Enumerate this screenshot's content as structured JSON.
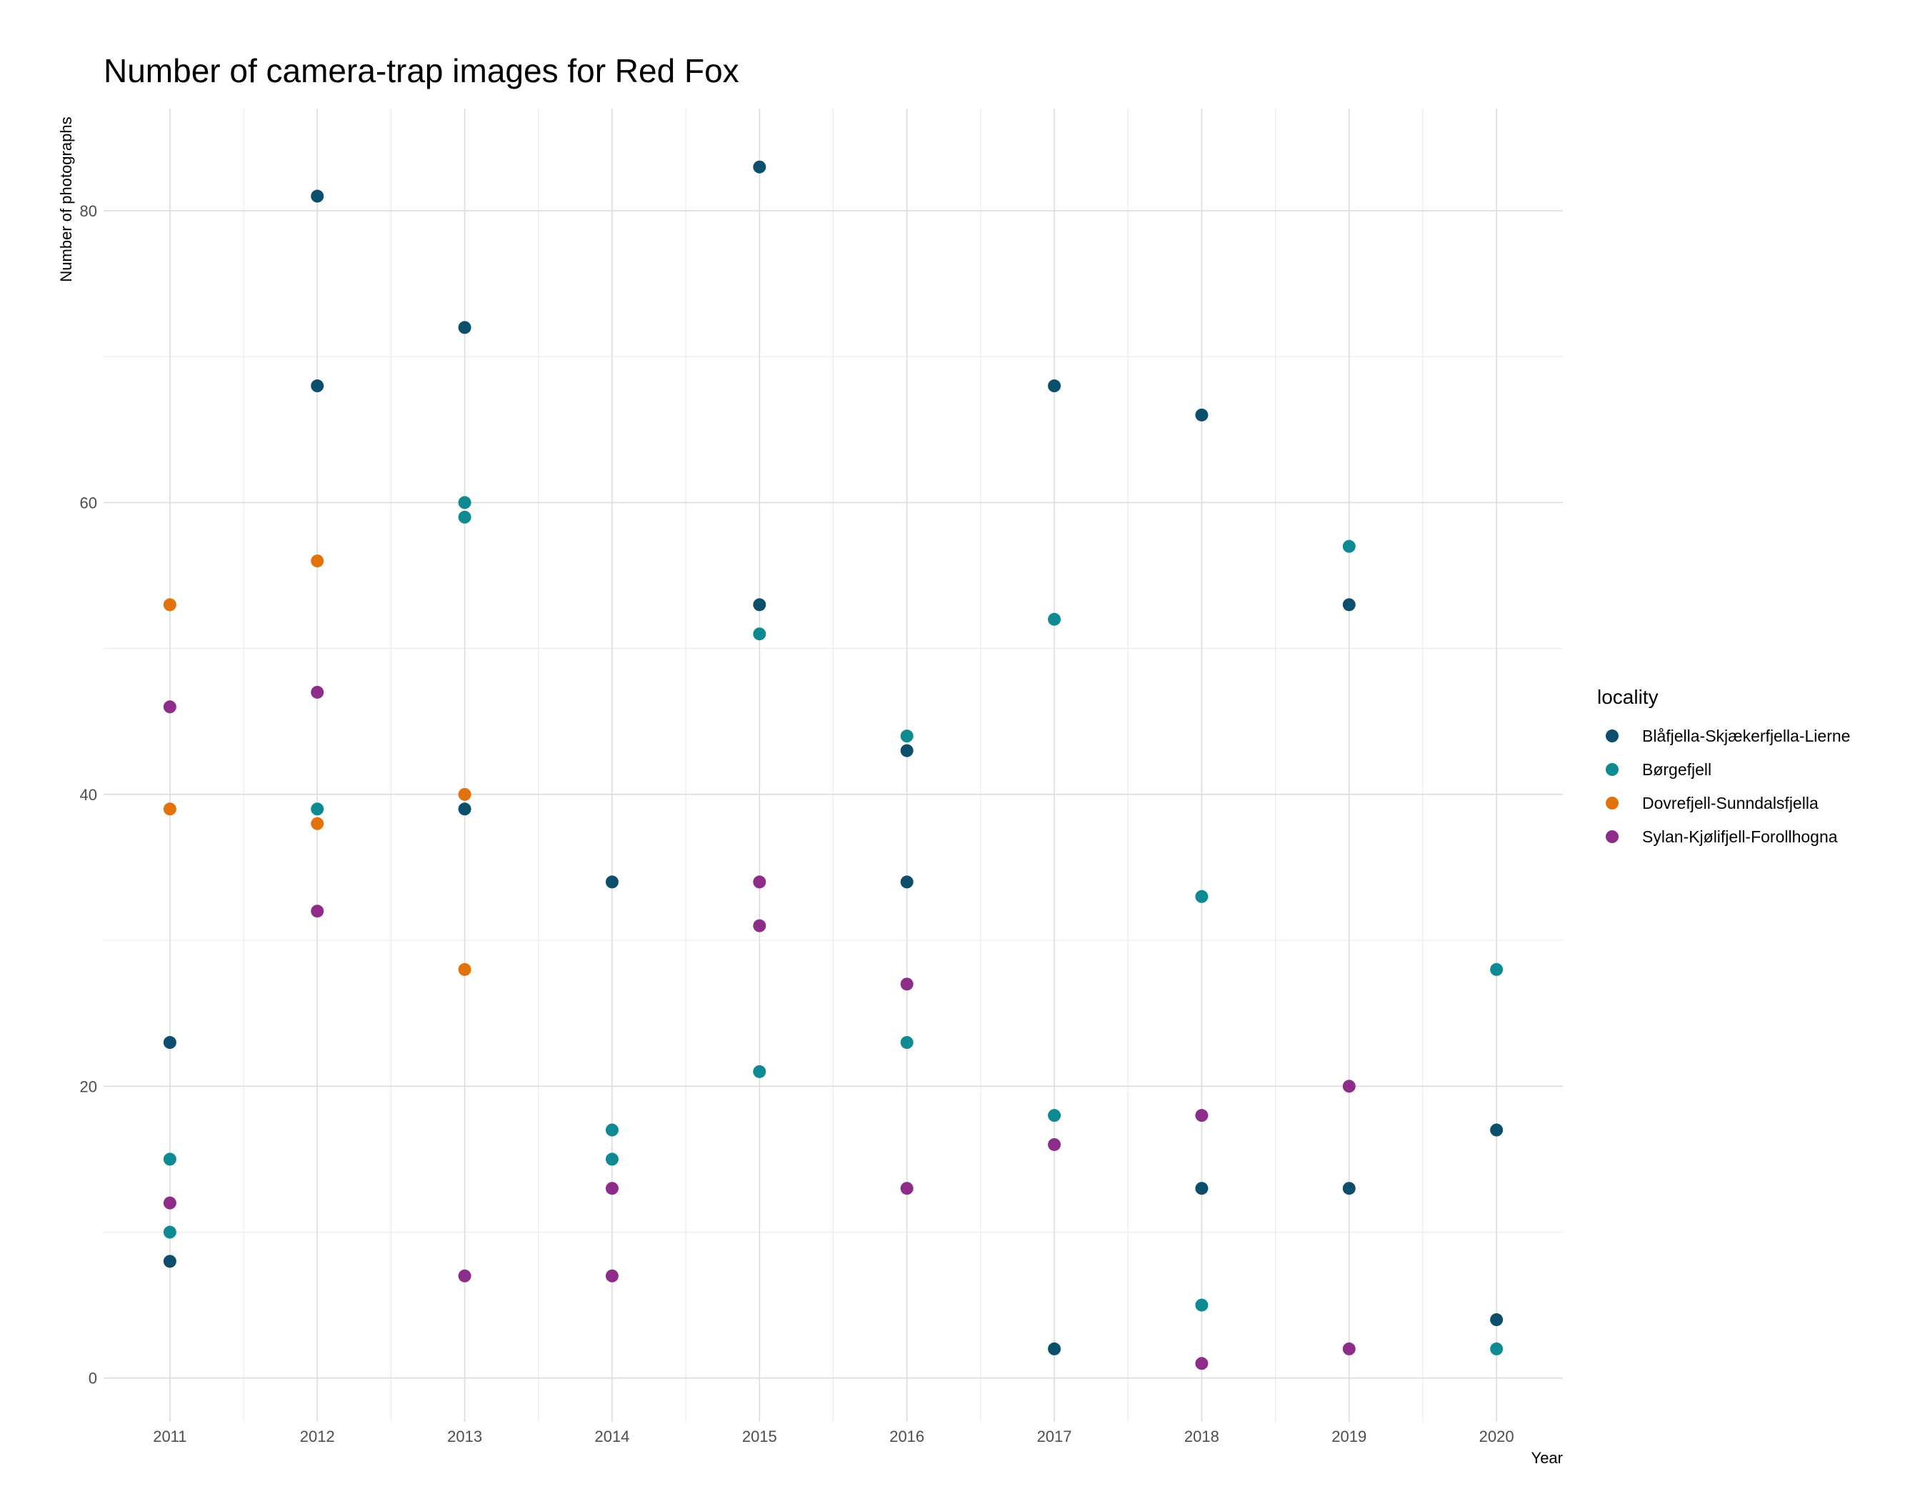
{
  "chart_data": {
    "type": "scatter",
    "title": "Number of camera-trap images for Red Fox",
    "xlabel": "Year",
    "ylabel": "Number of photographs",
    "xlim": [
      2010.55,
      2020.45
    ],
    "ylim": [
      -3,
      87
    ],
    "x_ticks": [
      2011,
      2012,
      2013,
      2014,
      2015,
      2016,
      2017,
      2018,
      2019,
      2020
    ],
    "x_tick_labels": [
      "2011",
      "2012",
      "2013",
      "2014",
      "2015",
      "2016",
      "2017",
      "2018",
      "2019",
      "2020"
    ],
    "y_ticks": [
      0,
      20,
      40,
      60,
      80
    ],
    "y_tick_labels": [
      "0",
      "20",
      "40",
      "60",
      "80"
    ],
    "y_minor_ticks": [
      10,
      30,
      50,
      70
    ],
    "grid": true,
    "legend_title": "locality",
    "legend_position": "right",
    "series": [
      {
        "name": "Blåfjella-Skjækerfjella-Lierne",
        "color": "#0b4f6c",
        "points": [
          [
            2011,
            23
          ],
          [
            2011,
            8
          ],
          [
            2012,
            81
          ],
          [
            2012,
            68
          ],
          [
            2013,
            72
          ],
          [
            2013,
            39
          ],
          [
            2014,
            34
          ],
          [
            2015,
            83
          ],
          [
            2015,
            53
          ],
          [
            2016,
            43
          ],
          [
            2016,
            34
          ],
          [
            2017,
            68
          ],
          [
            2017,
            2
          ],
          [
            2018,
            66
          ],
          [
            2018,
            13
          ],
          [
            2019,
            53
          ],
          [
            2019,
            13
          ],
          [
            2020,
            17
          ],
          [
            2020,
            4
          ]
        ]
      },
      {
        "name": "Børgefjell",
        "color": "#0e8b92",
        "points": [
          [
            2011,
            15
          ],
          [
            2011,
            10
          ],
          [
            2012,
            39
          ],
          [
            2013,
            60
          ],
          [
            2013,
            59
          ],
          [
            2014,
            17
          ],
          [
            2014,
            15
          ],
          [
            2015,
            51
          ],
          [
            2015,
            21
          ],
          [
            2016,
            44
          ],
          [
            2016,
            23
          ],
          [
            2017,
            52
          ],
          [
            2017,
            18
          ],
          [
            2018,
            33
          ],
          [
            2018,
            5
          ],
          [
            2019,
            57
          ],
          [
            2020,
            28
          ],
          [
            2020,
            2
          ]
        ]
      },
      {
        "name": "Dovrefjell-Sunndalsfjella",
        "color": "#e2720c",
        "points": [
          [
            2011,
            53
          ],
          [
            2011,
            39
          ],
          [
            2012,
            56
          ],
          [
            2012,
            38
          ],
          [
            2013,
            40
          ],
          [
            2013,
            28
          ]
        ]
      },
      {
        "name": "Sylan-Kjølifjell-Forollhogna",
        "color": "#8e2c8a",
        "points": [
          [
            2011,
            46
          ],
          [
            2011,
            12
          ],
          [
            2012,
            47
          ],
          [
            2012,
            32
          ],
          [
            2013,
            7
          ],
          [
            2014,
            13
          ],
          [
            2014,
            7
          ],
          [
            2015,
            34
          ],
          [
            2015,
            31
          ],
          [
            2016,
            27
          ],
          [
            2016,
            13
          ],
          [
            2017,
            16
          ],
          [
            2018,
            18
          ],
          [
            2018,
            1
          ],
          [
            2019,
            20
          ],
          [
            2019,
            2
          ]
        ]
      }
    ]
  }
}
